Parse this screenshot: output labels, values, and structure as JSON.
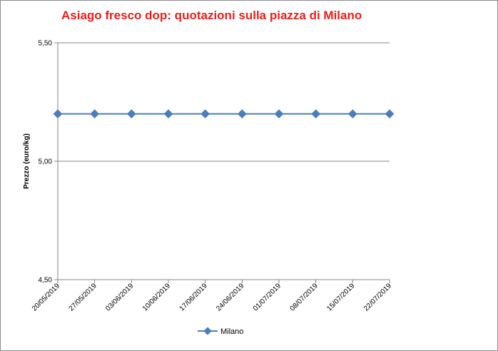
{
  "chart_data": {
    "type": "line",
    "title": "Asiago fresco dop: quotazioni sulla piazza di Milano",
    "xlabel": "",
    "ylabel": "Prezzo (euro/kg)",
    "categories": [
      "20/05/2019",
      "27/05/2019",
      "03/06/2019",
      "10/06/2019",
      "17/06/2019",
      "24/06/2019",
      "01/07/2019",
      "08/07/2019",
      "15/07/2019",
      "22/07/2019"
    ],
    "y_ticks": [
      "4,50",
      "5,00",
      "5,50"
    ],
    "ylim": [
      4.5,
      5.5
    ],
    "grid": true,
    "legend_position": "bottom",
    "series": [
      {
        "name": "Milano",
        "color": "#4a7ebb",
        "values": [
          5.2,
          5.2,
          5.2,
          5.2,
          5.2,
          5.2,
          5.2,
          5.2,
          5.2,
          5.2
        ]
      }
    ]
  }
}
